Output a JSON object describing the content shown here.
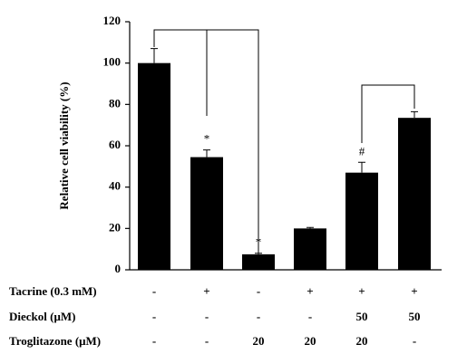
{
  "chart_data": {
    "type": "bar",
    "y_label": "Relative cell viability (%)",
    "categories": [
      null,
      null,
      null,
      null,
      null,
      null
    ],
    "values": [
      100,
      54.5,
      7.5,
      20,
      47,
      73.5
    ],
    "errors": [
      7,
      3.5,
      0.5,
      0.5,
      5,
      3
    ],
    "value_annotations": [
      null,
      "*",
      "*",
      null,
      "#",
      null
    ],
    "color": "#000000",
    "ylim": [
      0,
      120
    ],
    "yticks": [
      0,
      20,
      40,
      60,
      80,
      100,
      120
    ],
    "conditions": [
      {
        "label": "Tacrine (0.3 mM)",
        "values": [
          "-",
          "+",
          "-",
          "+",
          "+",
          "+"
        ]
      },
      {
        "label": "Dieckol (μM)",
        "values": [
          "-",
          "-",
          "-",
          "-",
          "50",
          "50"
        ]
      },
      {
        "label": "Troglitazone (μM)",
        "values": [
          "-",
          "-",
          "20",
          "20",
          "20",
          "-"
        ]
      }
    ]
  }
}
